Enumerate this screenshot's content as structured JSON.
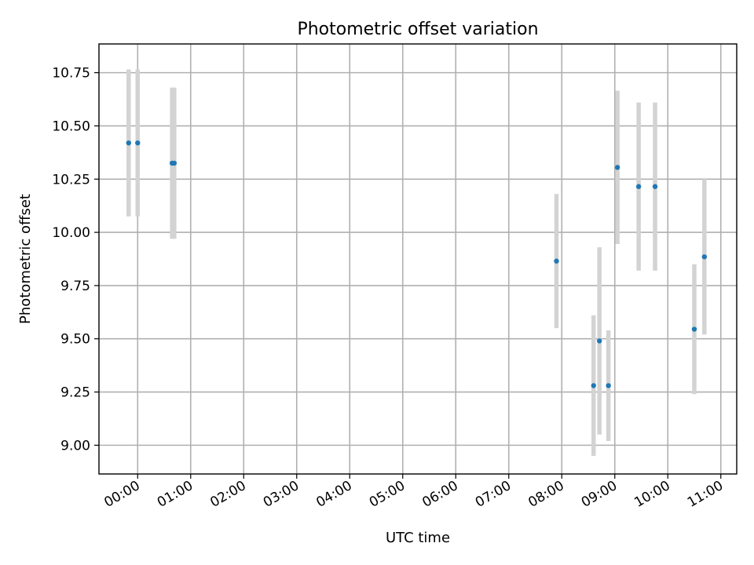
{
  "chart_data": {
    "type": "scatter",
    "title": "Photometric offset variation",
    "xlabel": "UTC time",
    "ylabel": "Photometric offset",
    "x_ticks": [
      "00:00",
      "01:00",
      "02:00",
      "03:00",
      "04:00",
      "05:00",
      "06:00",
      "07:00",
      "08:00",
      "09:00",
      "10:00",
      "11:00"
    ],
    "x_tick_hours": [
      0,
      1,
      2,
      3,
      4,
      5,
      6,
      7,
      8,
      9,
      10,
      11
    ],
    "x_unit": "hours UTC",
    "xlim": [
      -0.73,
      11.3
    ],
    "y_ticks": [
      "9.00",
      "9.25",
      "9.50",
      "9.75",
      "10.00",
      "10.25",
      "10.50",
      "10.75"
    ],
    "y_tick_values": [
      9.0,
      9.25,
      9.5,
      9.75,
      10.0,
      10.25,
      10.5,
      10.75
    ],
    "ylim": [
      8.865,
      10.885
    ],
    "grid": true,
    "marker_color": "#1f77b4",
    "errorbar_color": "#d3d3d3",
    "points": [
      {
        "x": -0.17,
        "y": 10.42,
        "err": 0.345
      },
      {
        "x": 0.0,
        "y": 10.42,
        "err": 0.345
      },
      {
        "x": 0.65,
        "y": 10.325,
        "err": 0.355
      },
      {
        "x": 0.69,
        "y": 10.325,
        "err": 0.355
      },
      {
        "x": 7.9,
        "y": 9.865,
        "err": 0.315
      },
      {
        "x": 8.6,
        "y": 9.28,
        "err": 0.33
      },
      {
        "x": 8.71,
        "y": 9.49,
        "err": 0.44
      },
      {
        "x": 8.88,
        "y": 9.28,
        "err": 0.26
      },
      {
        "x": 9.05,
        "y": 10.305,
        "err": 0.36
      },
      {
        "x": 9.45,
        "y": 10.215,
        "err": 0.395
      },
      {
        "x": 9.76,
        "y": 10.215,
        "err": 0.395
      },
      {
        "x": 10.5,
        "y": 9.545,
        "err": 0.305
      },
      {
        "x": 10.69,
        "y": 9.885,
        "err": 0.365
      }
    ]
  }
}
